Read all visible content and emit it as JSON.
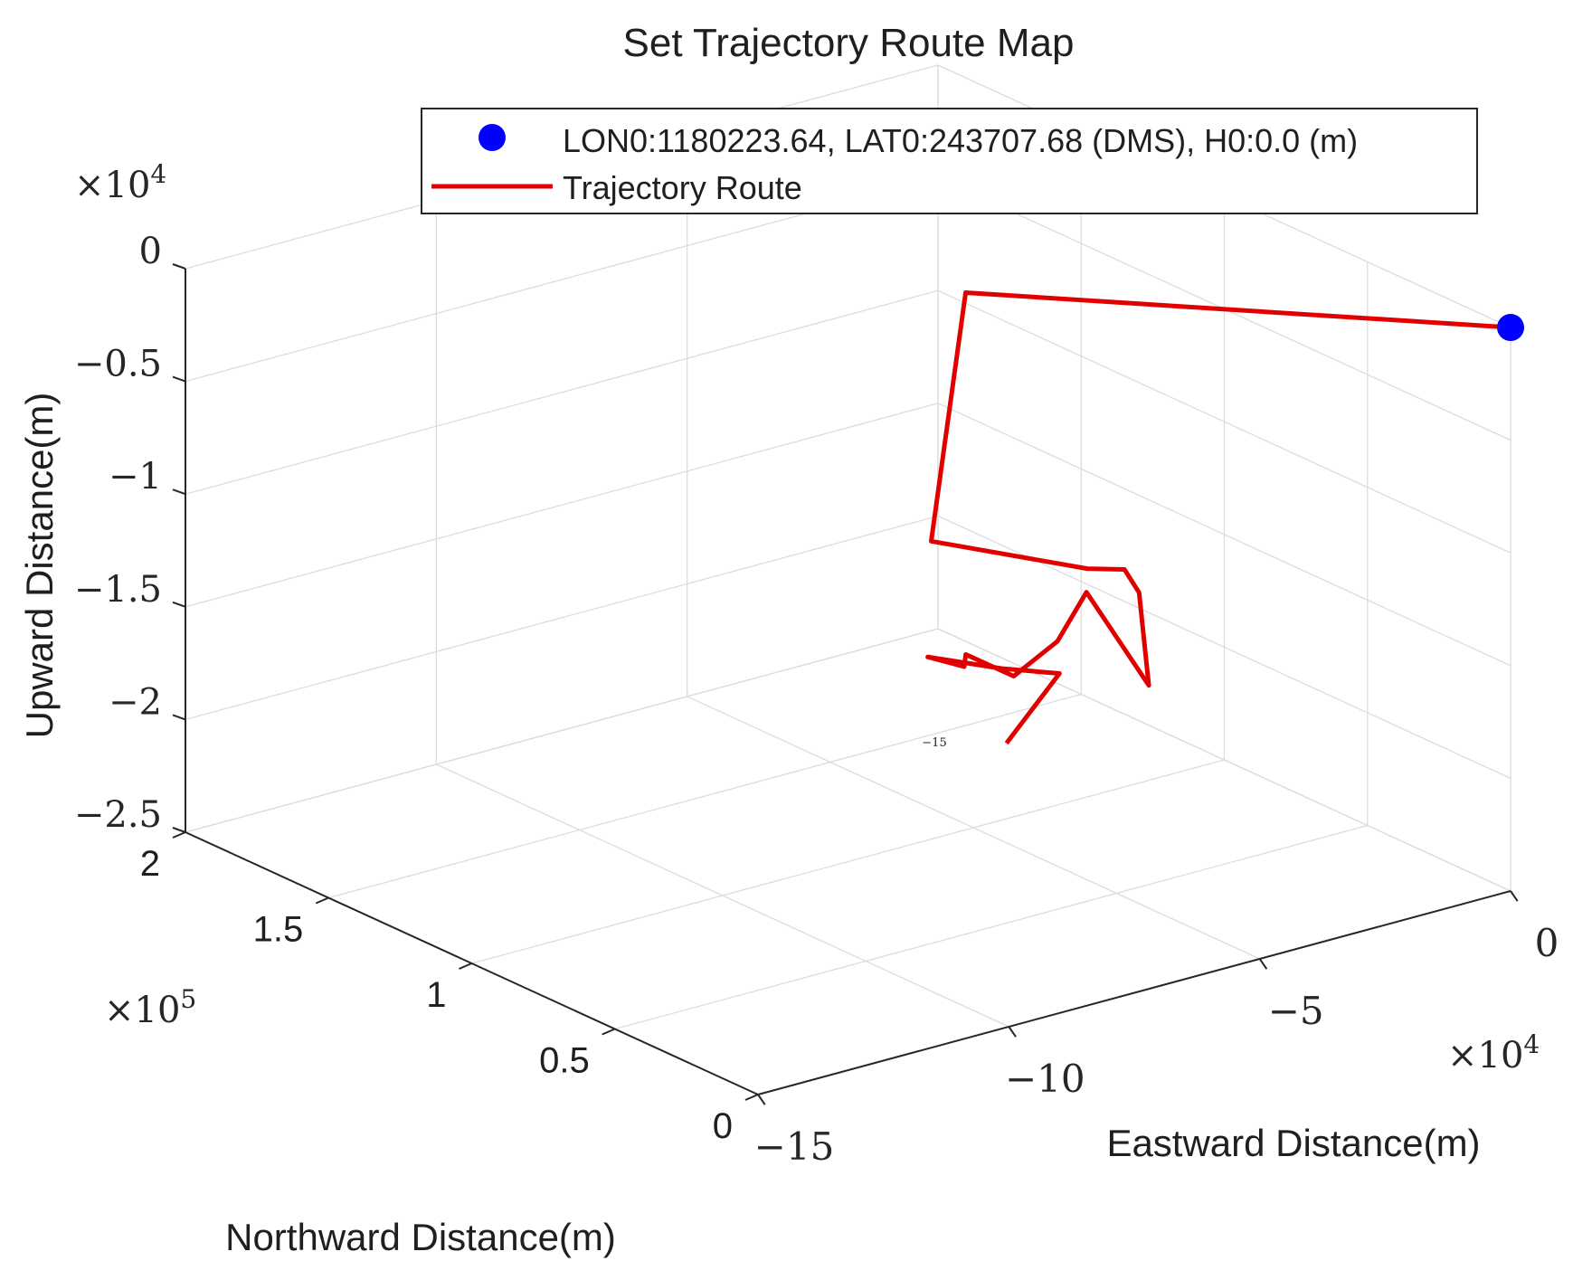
{
  "chart_data": {
    "type": "line",
    "projection": "3d",
    "title": "Set Trajectory Route Map",
    "xlabel": "Eastward Distance(m)",
    "ylabel": "Northward Distance(m)",
    "zlabel": "Upward Distance(m)",
    "x_exponent_label": "×10",
    "x_exponent_power": "4",
    "y_exponent_label": "×10",
    "y_exponent_power": "5",
    "z_exponent_label": "×10",
    "z_exponent_power": "4",
    "xlim": [
      -15,
      0
    ],
    "ylim": [
      0,
      2
    ],
    "zlim": [
      -2.5,
      0
    ],
    "x_ticks": [
      {
        "value": -15,
        "label": "−15"
      },
      {
        "value": -10,
        "label": "−10"
      },
      {
        "value": -5,
        "label": "−5"
      },
      {
        "value": 0,
        "label": "0"
      }
    ],
    "y_ticks": [
      {
        "value": 0,
        "label": "0"
      },
      {
        "value": 0.5,
        "label": "0.5"
      },
      {
        "value": 1,
        "label": "1"
      },
      {
        "value": 1.5,
        "label": "1.5"
      },
      {
        "value": 2,
        "label": "2"
      }
    ],
    "z_ticks": [
      {
        "value": -2.5,
        "label": "−2.5"
      },
      {
        "value": -2,
        "label": "−2"
      },
      {
        "value": -1.5,
        "label": "−1.5"
      },
      {
        "value": -1,
        "label": "−1"
      },
      {
        "value": -0.5,
        "label": "−0.5"
      },
      {
        "value": 0,
        "label": "0"
      }
    ],
    "stray_label": "−15",
    "grid": true,
    "legend": {
      "placement": "top",
      "entries": [
        {
          "label": "LON0:1180223.64, LAT0:243707.68 (DMS), H0:0.0 (m)",
          "marker": "circle",
          "color": "#0000ff"
        },
        {
          "label": "Trajectory Route",
          "marker": "line",
          "color": "#e00000"
        }
      ]
    },
    "series": [
      {
        "name": "Trajectory Route",
        "color": "#e00000",
        "points": [
          {
            "x": -3.2,
            "y": 1.2,
            "z": -2.35
          },
          {
            "x": -2.6,
            "y": 1.12,
            "z": -2.03
          },
          {
            "x": -3.0,
            "y": 1.25,
            "z": -2.06
          },
          {
            "x": -3.8,
            "y": 1.37,
            "z": -2.03
          },
          {
            "x": -3.3,
            "y": 1.33,
            "z": -2.08
          },
          {
            "x": -2.7,
            "y": 1.43,
            "z": -2.12
          },
          {
            "x": -2.2,
            "y": 1.35,
            "z": -2.2
          },
          {
            "x": -1.5,
            "y": 1.32,
            "z": -2.07
          },
          {
            "x": -1.15,
            "y": 1.28,
            "z": -1.85
          },
          {
            "x": -0.82,
            "y": 1.12,
            "z": -2.19
          },
          {
            "x": -0.5,
            "y": 1.21,
            "z": -1.85
          },
          {
            "x": -0.05,
            "y": 1.34,
            "z": -1.85
          },
          {
            "x": 0.12,
            "y": 1.5,
            "z": -1.95
          },
          {
            "x": 0.15,
            "y": 2.05,
            "z": -2.15
          },
          {
            "x": -0.02,
            "y": 1.9,
            "z": -0.95
          },
          {
            "x": 0,
            "y": 0,
            "z": 0
          }
        ]
      },
      {
        "name": "LON0:1180223.64, LAT0:243707.68 (DMS), H0:0.0 (m)",
        "color": "#0000ff",
        "points": [
          {
            "x": 0,
            "y": 0,
            "z": 0
          }
        ]
      }
    ]
  }
}
